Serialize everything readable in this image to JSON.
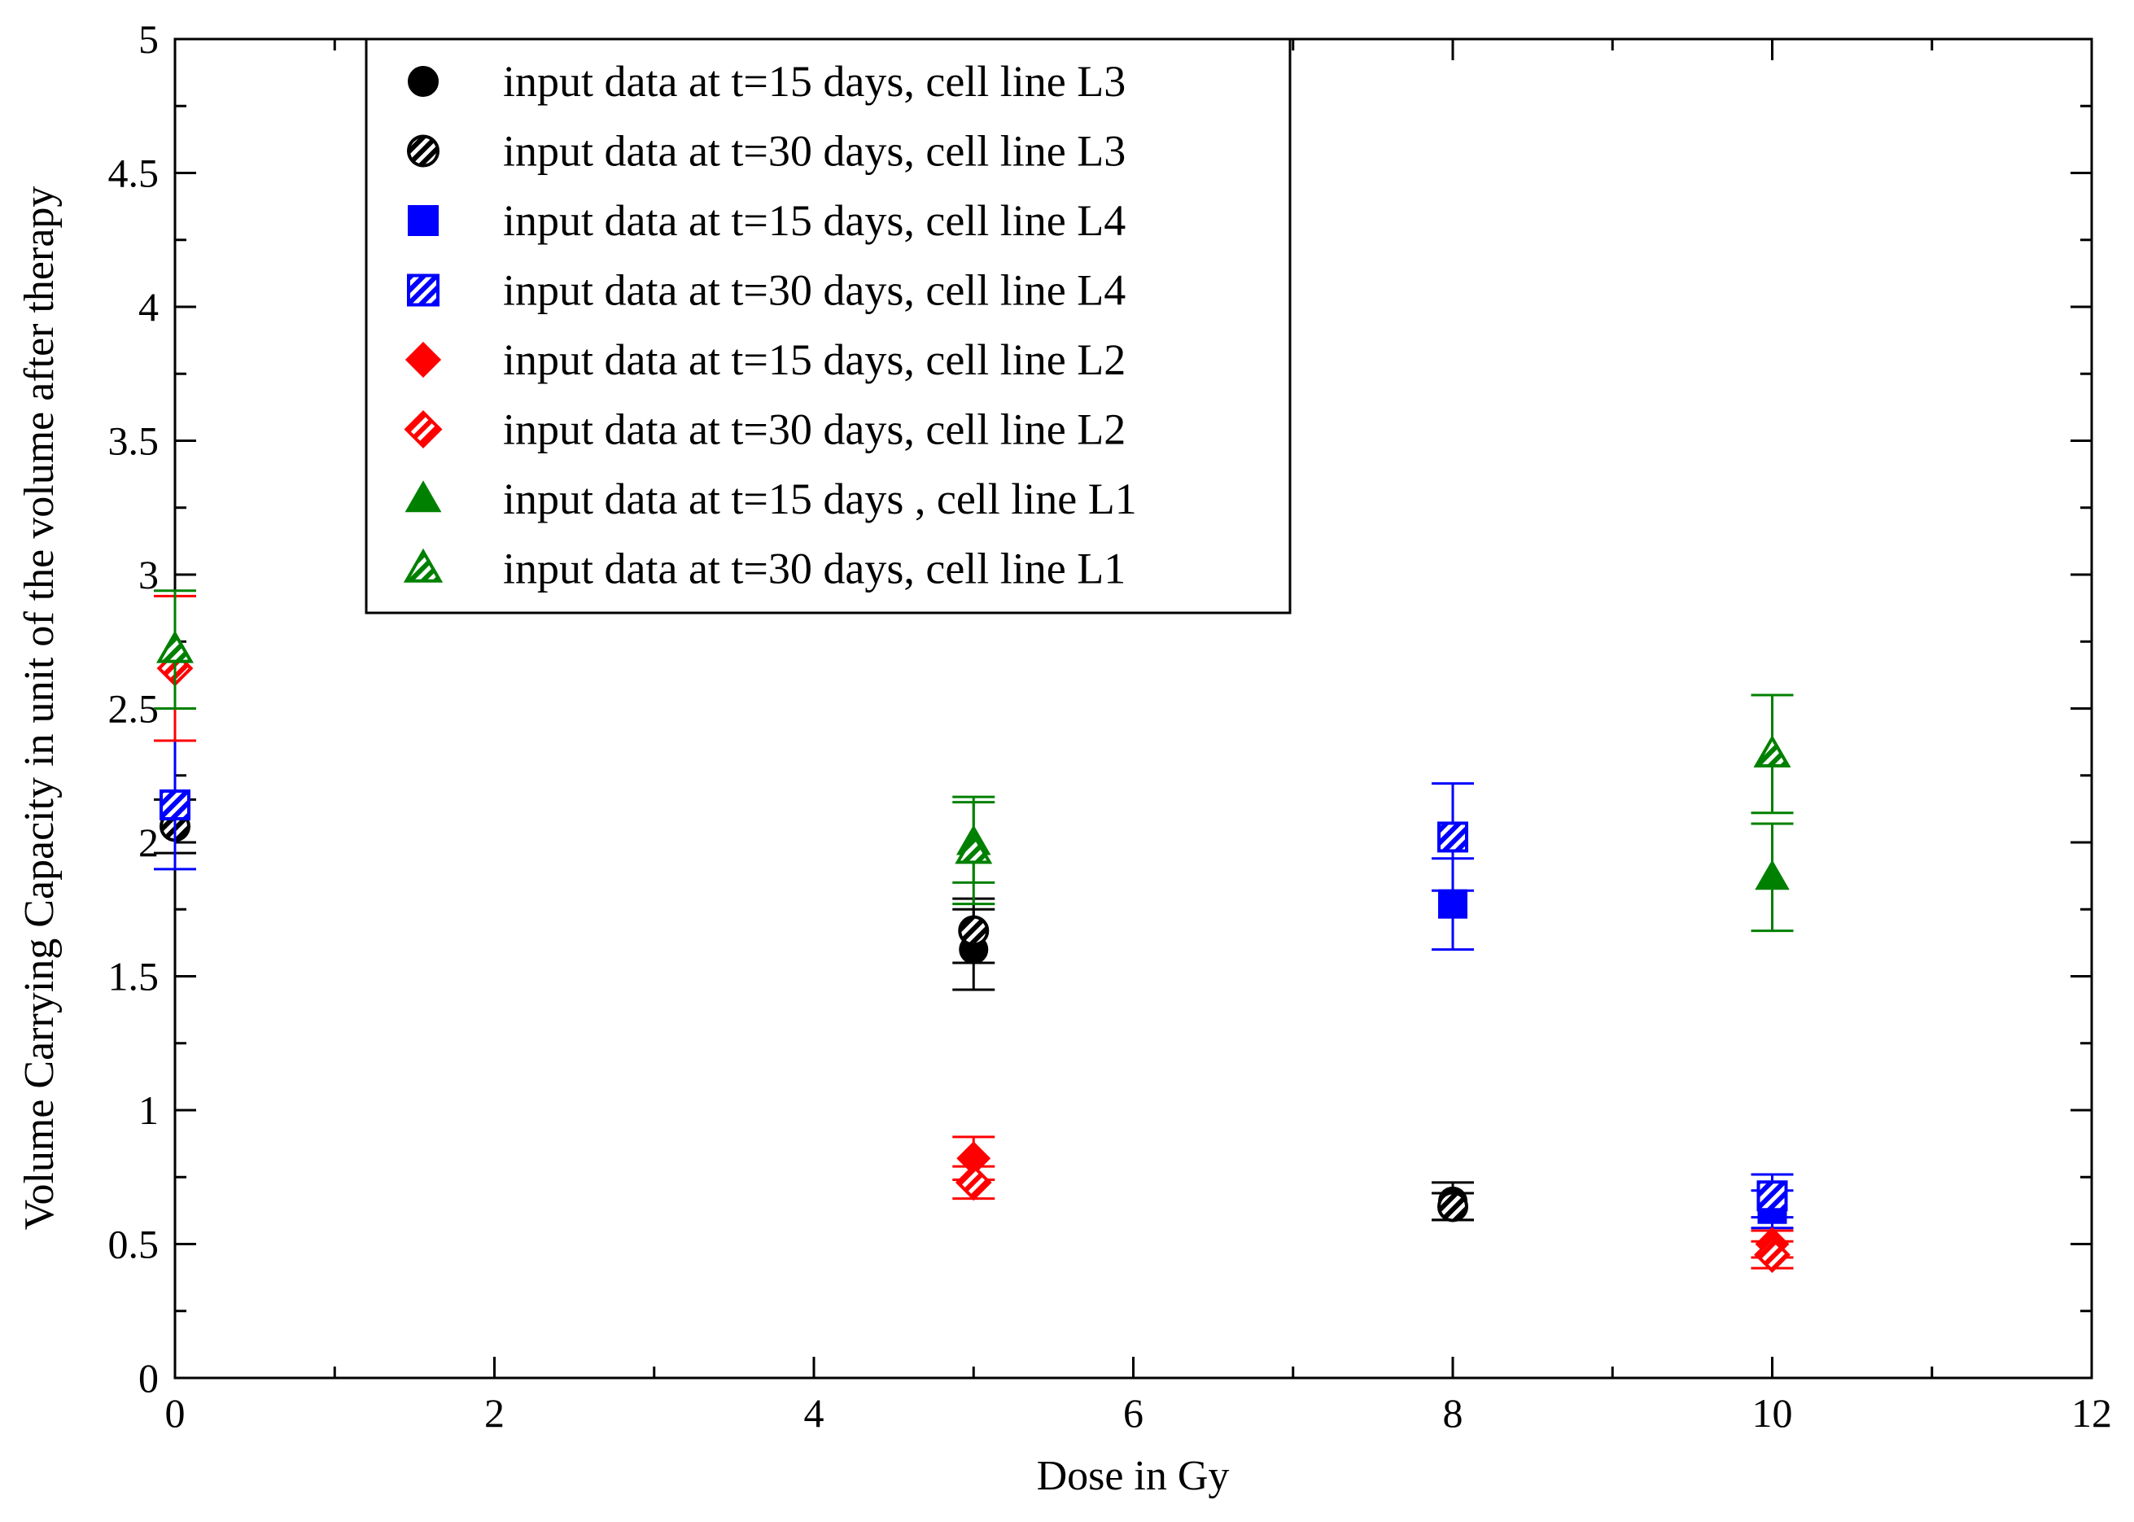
{
  "chart_data": {
    "type": "scatter",
    "title": "",
    "xlabel": "Dose in Gy",
    "ylabel": "Volume Carrying Capacity in unit of the volume after therapy",
    "xlim": [
      0,
      12
    ],
    "ylim": [
      0,
      5
    ],
    "x_ticks": [
      "0",
      "2",
      "4",
      "6",
      "8",
      "10",
      "12"
    ],
    "y_ticks": [
      "0",
      "0.5",
      "1",
      "1.5",
      "2",
      "2.5",
      "3",
      "3.5",
      "4",
      "4.5",
      "5"
    ],
    "x_tick_values": [
      0,
      2,
      4,
      6,
      8,
      10,
      12
    ],
    "y_tick_values": [
      0,
      0.5,
      1,
      1.5,
      2,
      2.5,
      3,
      3.5,
      4,
      4.5,
      5
    ],
    "legend_position": "top-left",
    "series": [
      {
        "name": "input data at t=15 days, cell line L3",
        "color": "#000000",
        "marker": "circle",
        "fill": "solid",
        "points": [
          {
            "x": 5,
            "y": 1.6,
            "err": 0.15
          },
          {
            "x": 8,
            "y": 0.66,
            "err": 0.07
          }
        ]
      },
      {
        "name": "input data at t=30 days, cell line L3",
        "color": "#000000",
        "marker": "circle",
        "fill": "hatched",
        "points": [
          {
            "x": 0,
            "y": 2.06,
            "err": 0.1
          },
          {
            "x": 5,
            "y": 1.67,
            "err": 0.12
          },
          {
            "x": 8,
            "y": 0.64,
            "err": 0.05
          }
        ]
      },
      {
        "name": "input data at t=15 days, cell line L4",
        "color": "#0000ff",
        "marker": "square",
        "fill": "solid",
        "points": [
          {
            "x": 8,
            "y": 1.77,
            "err": 0.17
          },
          {
            "x": 10,
            "y": 0.63,
            "err": 0.07
          }
        ]
      },
      {
        "name": "input data at t=30 days, cell line L4",
        "color": "#0000ff",
        "marker": "square",
        "fill": "hatched",
        "points": [
          {
            "x": 0,
            "y": 2.14,
            "err": 0.24
          },
          {
            "x": 10,
            "y": 0.68,
            "err": 0.08
          },
          {
            "x": 8,
            "y": 2.02,
            "err": 0.2
          }
        ]
      },
      {
        "name": "input data at t=15 days, cell line L2",
        "color": "#ff0000",
        "marker": "diamond",
        "fill": "solid",
        "points": [
          {
            "x": 5,
            "y": 0.82,
            "err": 0.08
          },
          {
            "x": 10,
            "y": 0.5,
            "err": 0.05
          }
        ]
      },
      {
        "name": "input data at t=30 days, cell line L2",
        "color": "#ff0000",
        "marker": "diamond",
        "fill": "hatched",
        "points": [
          {
            "x": 0,
            "y": 2.65,
            "err": 0.27
          },
          {
            "x": 5,
            "y": 0.73,
            "err": 0.06
          },
          {
            "x": 10,
            "y": 0.46,
            "err": 0.05
          }
        ]
      },
      {
        "name": "input data at t=15 days , cell line L1",
        "color": "#008000",
        "marker": "triangle",
        "fill": "solid",
        "points": [
          {
            "x": 10,
            "y": 1.87,
            "err": 0.2
          },
          {
            "x": 5,
            "y": 2.0,
            "err": 0.15
          }
        ]
      },
      {
        "name": "input data at t=30 days, cell line L1",
        "color": "#008000",
        "marker": "triangle",
        "fill": "hatched",
        "points": [
          {
            "x": 0,
            "y": 2.72,
            "err": 0.22
          },
          {
            "x": 5,
            "y": 1.97,
            "err": 0.2
          },
          {
            "x": 10,
            "y": 2.33,
            "err": 0.22
          }
        ]
      }
    ]
  }
}
